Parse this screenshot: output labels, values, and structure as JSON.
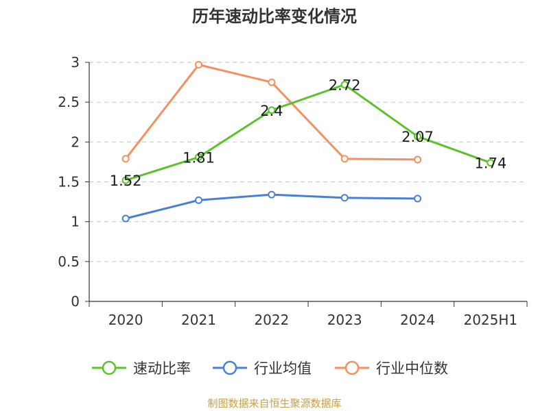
{
  "chart_data": {
    "type": "line",
    "title": "历年速动比率变化情况",
    "categories": [
      "2020",
      "2021",
      "2022",
      "2023",
      "2024",
      "2025H1"
    ],
    "y_ticks": [
      "0",
      "0.5",
      "1",
      "1.5",
      "2",
      "2.5",
      "3"
    ],
    "ylim": [
      0,
      3
    ],
    "grid": true,
    "legend_position": "bottom",
    "series": [
      {
        "name": "速动比率",
        "color": "#5cc22a",
        "values": [
          1.52,
          1.81,
          2.4,
          2.72,
          2.07,
          1.74
        ],
        "labels": [
          "1.52",
          "1.81",
          "2.4",
          "2.72",
          "2.07",
          "1.74"
        ]
      },
      {
        "name": "行业均值",
        "color": "#4a7fd6",
        "values": [
          1.04,
          1.27,
          1.34,
          1.3,
          1.29,
          null
        ]
      },
      {
        "name": "行业中位数",
        "color": "#f58f5c",
        "values": [
          1.79,
          2.97,
          2.75,
          1.79,
          1.78,
          null
        ]
      }
    ]
  },
  "footer": {
    "source": "制图数据来自恒生聚源数据库"
  }
}
